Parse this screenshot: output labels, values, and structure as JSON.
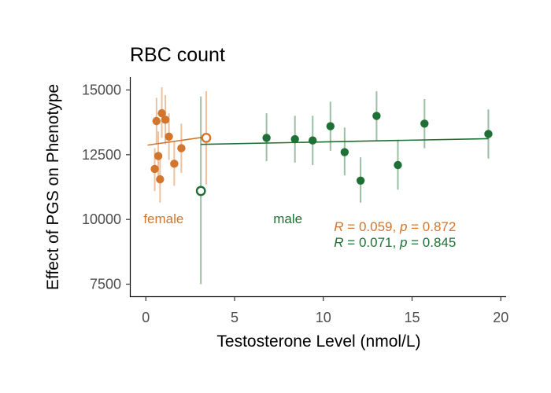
{
  "chart_data": {
    "type": "scatter",
    "title": "RBC count",
    "xlabel": "Testosterone Level (nmol/L)",
    "ylabel": "Effect of PGS on Phenotype",
    "xlim": [
      -0.9,
      20.3
    ],
    "ylim": [
      7000,
      15500
    ],
    "x_ticks": [
      0,
      5,
      10,
      15,
      20
    ],
    "y_ticks": [
      7500,
      10000,
      12500,
      15000
    ],
    "grid": false,
    "series": [
      {
        "name": "female",
        "color": "#d2752d",
        "points": [
          {
            "x": 0.5,
            "y": 11950,
            "lo": 11100,
            "hi": 12750
          },
          {
            "x": 0.6,
            "y": 13800,
            "lo": 12900,
            "hi": 14700
          },
          {
            "x": 0.7,
            "y": 12450,
            "lo": 11500,
            "hi": 13400
          },
          {
            "x": 0.8,
            "y": 11550,
            "lo": 10650,
            "hi": 12450
          },
          {
            "x": 0.9,
            "y": 14100,
            "lo": 13150,
            "hi": 15100
          },
          {
            "x": 1.1,
            "y": 13850,
            "lo": 12900,
            "hi": 14800
          },
          {
            "x": 1.3,
            "y": 13200,
            "lo": 12300,
            "hi": 14100
          },
          {
            "x": 1.6,
            "y": 12150,
            "lo": 11300,
            "hi": 13000
          },
          {
            "x": 2.0,
            "y": 12750,
            "lo": 11800,
            "hi": 13700
          },
          {
            "x": 3.4,
            "y": 13150,
            "lo": 11350,
            "hi": 14950,
            "open": true
          }
        ],
        "fit": [
          [
            0.1,
            12870
          ],
          [
            3.4,
            13190
          ]
        ],
        "group_label": "female",
        "stat": {
          "R": "0.059",
          "p": "0.872"
        }
      },
      {
        "name": "male",
        "color": "#1e7034",
        "points": [
          {
            "x": 3.1,
            "y": 11100,
            "lo": 7500,
            "hi": 14750,
            "open": true
          },
          {
            "x": 6.8,
            "y": 13150,
            "lo": 12250,
            "hi": 14100
          },
          {
            "x": 8.4,
            "y": 13100,
            "lo": 12200,
            "hi": 14000
          },
          {
            "x": 9.4,
            "y": 13050,
            "lo": 12100,
            "hi": 14000
          },
          {
            "x": 10.4,
            "y": 13600,
            "lo": 12650,
            "hi": 14550
          },
          {
            "x": 11.2,
            "y": 12600,
            "lo": 11700,
            "hi": 13550
          },
          {
            "x": 12.1,
            "y": 11500,
            "lo": 10650,
            "hi": 12400
          },
          {
            "x": 13.0,
            "y": 14000,
            "lo": 13050,
            "hi": 14950
          },
          {
            "x": 14.2,
            "y": 12100,
            "lo": 11150,
            "hi": 13050
          },
          {
            "x": 15.7,
            "y": 13700,
            "lo": 12750,
            "hi": 14650
          },
          {
            "x": 19.3,
            "y": 13300,
            "lo": 12350,
            "hi": 14250
          }
        ],
        "fit": [
          [
            3.1,
            12900
          ],
          [
            19.3,
            13120
          ]
        ],
        "group_label": "male",
        "stat": {
          "R": "0.071",
          "p": "0.845"
        }
      }
    ]
  }
}
